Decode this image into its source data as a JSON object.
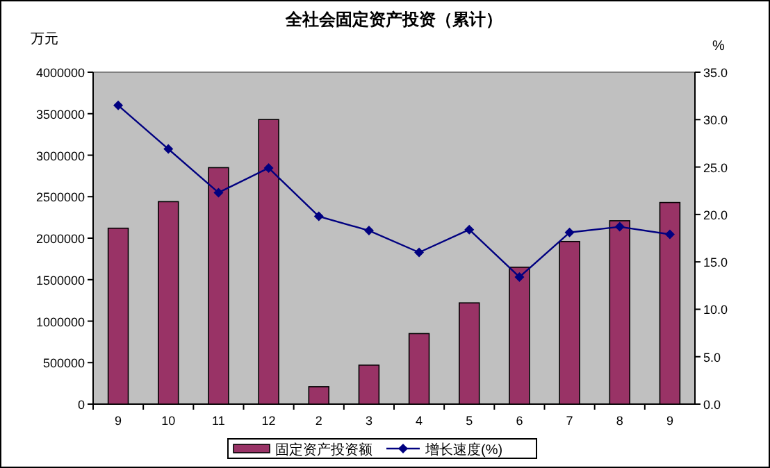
{
  "chart_data": {
    "type": "bar",
    "title": "全社会固定资产投资（累计）",
    "ylabel": "万元",
    "y2label": "%",
    "categories": [
      "9",
      "10",
      "11",
      "12",
      "2",
      "3",
      "4",
      "5",
      "6",
      "7",
      "8",
      "9"
    ],
    "series": [
      {
        "name": "固定资产投资额",
        "color": "#993366",
        "values": [
          2120000,
          2440000,
          2850000,
          3430000,
          210000,
          470000,
          850000,
          1220000,
          1650000,
          1960000,
          2210000,
          2430000
        ]
      },
      {
        "name": "增长速度(%)",
        "type": "line",
        "axis": "y2",
        "color": "#000080",
        "marker": "diamond",
        "values": [
          31.5,
          26.9,
          22.3,
          24.9,
          19.8,
          18.3,
          16.0,
          18.4,
          13.4,
          18.1,
          18.7,
          17.9
        ]
      }
    ],
    "ylim": [
      0,
      4000000
    ],
    "yticks": [
      0,
      500000,
      1000000,
      1500000,
      2000000,
      2500000,
      3000000,
      3500000,
      4000000
    ],
    "y2lim": [
      0,
      35
    ],
    "y2ticks": [
      {
        "value": 0,
        "label": "0.0"
      },
      {
        "value": 5,
        "label": "5.0"
      },
      {
        "value": 10,
        "label": "10.0"
      },
      {
        "value": 15,
        "label": "15.0"
      },
      {
        "value": 20,
        "label": "20.0"
      },
      {
        "value": 25,
        "label": "25.0"
      },
      {
        "value": 30,
        "label": "30.0"
      },
      {
        "value": 35,
        "label": "35.0"
      }
    ],
    "grid": false,
    "legend": "bottom"
  }
}
